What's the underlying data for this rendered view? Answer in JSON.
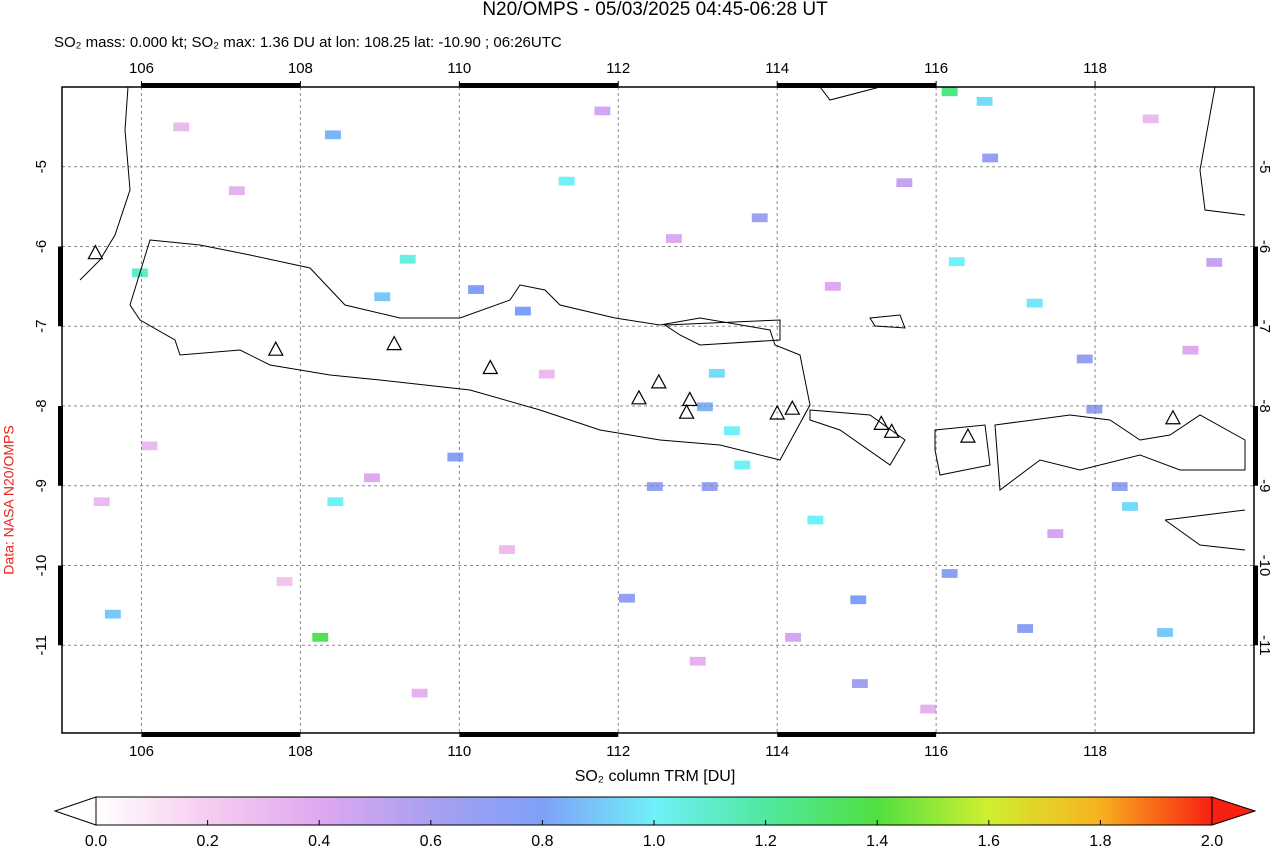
{
  "chart_data": {
    "type": "map",
    "title": "N20/OMPS - 05/03/2025 04:45-06:28 UT",
    "subtitle": "SO₂ mass: 0.000 kt; SO₂ max: 1.36 DU at lon: 108.25 lat: -10.90 ; 06:26UTC",
    "colorbar_label": "SO₂ column TRM [DU]",
    "credit": "Data: NASA N20/OMPS",
    "xlim": [
      105,
      120
    ],
    "ylim": [
      -12.1,
      -4
    ],
    "xticks": [
      106,
      108,
      110,
      112,
      114,
      116,
      118
    ],
    "yticks": [
      -5,
      -6,
      -7,
      -8,
      -9,
      -10,
      -11
    ],
    "grid": true,
    "clim": [
      0,
      2
    ],
    "colorscale": [
      "#ffffff",
      "#f6cdf0",
      "#e0a8f0",
      "#a8a0f0",
      "#7fa0f8",
      "#70f0f8",
      "#50e8a0",
      "#50e040",
      "#d0f030",
      "#f8b020",
      "#f82010"
    ],
    "cticks": [
      {
        "value": 0,
        "label": "0.0"
      },
      {
        "value": 0.2,
        "label": "0.2"
      },
      {
        "value": 0.4,
        "label": "0.4"
      },
      {
        "value": 0.6,
        "label": "0.6"
      },
      {
        "value": 0.8,
        "label": "0.8"
      },
      {
        "value": 1,
        "label": "1.0"
      },
      {
        "value": 1.2,
        "label": "1.2"
      },
      {
        "value": 1.4,
        "label": "1.4"
      },
      {
        "value": 1.6,
        "label": "1.6"
      },
      {
        "value": 1.8,
        "label": "1.8"
      },
      {
        "value": 2,
        "label": "2.0"
      }
    ],
    "pixels": {
      "lon": [
        111.35,
        109.35,
        105.98,
        108.41,
        109.03,
        110.8,
        116.26,
        116.61,
        116.17,
        117.24,
        113.24,
        113.09,
        113.43,
        113.56,
        114.48,
        115.02,
        108.25,
        118.44,
        118.88,
        117.87,
        116.68,
        113.78,
        112.46,
        113.15,
        108.44,
        105.64,
        117.12,
        116.17,
        118.31,
        117.99,
        115.04,
        110.21,
        112.11,
        109.95,
        106.5,
        107.2,
        108.9,
        110.6,
        111.8,
        113.0,
        114.7,
        115.6,
        117.5,
        119.2,
        106.1,
        107.8,
        109.5,
        111.1,
        112.7,
        114.2,
        115.9,
        118.7,
        119.5,
        105.5
      ],
      "lat": [
        -5.18,
        -6.16,
        -6.33,
        -4.6,
        -6.63,
        -6.81,
        -6.19,
        -4.18,
        -4.06,
        -6.71,
        -7.59,
        -8.01,
        -8.31,
        -8.74,
        -9.43,
        -10.43,
        -10.9,
        -9.26,
        -10.84,
        -7.41,
        -4.89,
        -5.64,
        -9.01,
        -9.01,
        -9.2,
        -10.61,
        -10.79,
        -10.1,
        -9.01,
        -8.04,
        -11.48,
        -6.54,
        -10.41,
        -8.64,
        -4.5,
        -5.3,
        -8.9,
        -9.8,
        -4.3,
        -11.2,
        -6.5,
        -5.2,
        -9.6,
        -7.3,
        -8.5,
        -10.2,
        -11.6,
        -7.6,
        -5.9,
        -10.9,
        -11.8,
        -4.4,
        -6.2,
        -9.2
      ],
      "values": [
        1.0,
        1.05,
        1.1,
        0.85,
        0.9,
        0.8,
        1.0,
        0.95,
        1.25,
        0.98,
        0.95,
        0.85,
        1.0,
        1.0,
        1.0,
        0.8,
        1.36,
        0.95,
        0.9,
        0.7,
        0.7,
        0.65,
        0.7,
        0.7,
        1.0,
        0.9,
        0.75,
        0.75,
        0.7,
        0.7,
        0.65,
        0.8,
        0.7,
        0.75,
        0.3,
        0.35,
        0.4,
        0.3,
        0.45,
        0.35,
        0.4,
        0.5,
        0.45,
        0.4,
        0.3,
        0.25,
        0.35,
        0.3,
        0.4,
        0.45,
        0.35,
        0.3,
        0.5,
        0.3
      ]
    },
    "volcanoes": {
      "lon": [
        105.42,
        107.69,
        109.18,
        110.39,
        112.26,
        112.51,
        112.9,
        112.86,
        114.0,
        114.19,
        115.31,
        115.44,
        116.4,
        118.98
      ],
      "lat": [
        -6.09,
        -7.3,
        -7.23,
        -7.53,
        -7.91,
        -7.71,
        -7.93,
        -8.09,
        -8.1,
        -8.04,
        -8.23,
        -8.33,
        -8.39,
        -8.16
      ]
    }
  }
}
